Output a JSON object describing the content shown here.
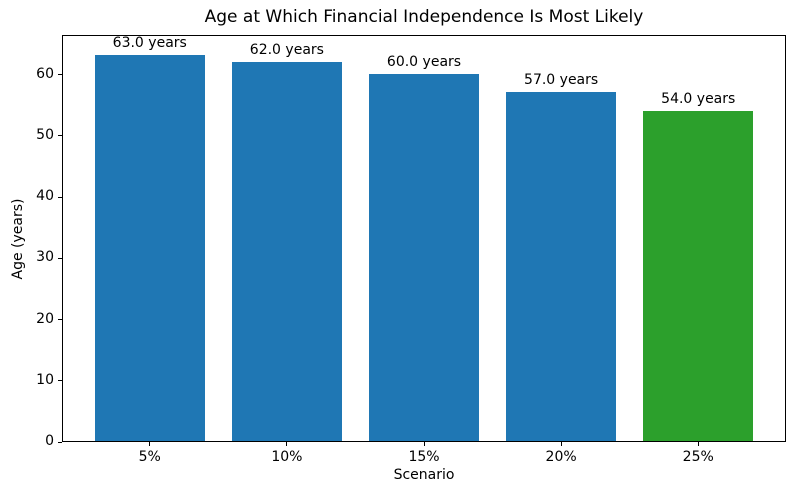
{
  "chart_data": {
    "type": "bar",
    "title": "Age at Which Financial Independence Is Most Likely",
    "xlabel": "Scenario",
    "ylabel": "Age (years)",
    "categories": [
      "5%",
      "10%",
      "15%",
      "20%",
      "25%"
    ],
    "values": [
      63.0,
      62.0,
      60.0,
      57.0,
      54.0
    ],
    "bar_labels": [
      "63.0 years",
      "62.0 years",
      "60.0 years",
      "57.0 years",
      "54.0 years"
    ],
    "bar_colors": [
      "#1f77b4",
      "#1f77b4",
      "#1f77b4",
      "#1f77b4",
      "#2ca02c"
    ],
    "yticks": [
      0,
      10,
      20,
      30,
      40,
      50,
      60
    ],
    "ylim": [
      0,
      66.5
    ],
    "grid": false,
    "legend_position": "none",
    "colors": {
      "bar_default": "#1f77b4",
      "bar_highlight": "#2ca02c",
      "text": "#000000",
      "spine": "#000000",
      "background": "#ffffff"
    }
  }
}
